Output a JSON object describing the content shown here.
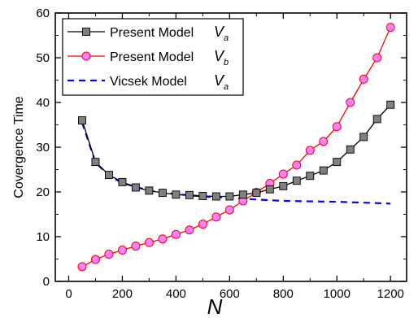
{
  "chart_data": {
    "type": "line",
    "xlabel": "N",
    "ylabel": "Covergence Time",
    "xlim": [
      -50,
      1260
    ],
    "ylim": [
      0,
      60
    ],
    "xticks": [
      0,
      200,
      400,
      600,
      800,
      1000,
      1200
    ],
    "yticks": [
      0,
      10,
      20,
      30,
      40,
      50,
      60
    ],
    "legend_position": "top-left",
    "series": [
      {
        "name": "Present Model",
        "name_symbol": "V",
        "name_subscript": "a",
        "color": "#000000",
        "marker": "square",
        "marker_fill": "#808080",
        "line_style": "solid",
        "x": [
          50,
          100,
          150,
          200,
          250,
          300,
          350,
          400,
          450,
          500,
          550,
          600,
          650,
          700,
          750,
          800,
          850,
          900,
          950,
          1000,
          1050,
          1100,
          1150,
          1200
        ],
        "y": [
          36.0,
          26.7,
          23.8,
          22.2,
          21.0,
          20.3,
          19.8,
          19.4,
          19.3,
          19.1,
          19.0,
          19.0,
          19.4,
          19.8,
          20.6,
          21.3,
          22.5,
          23.6,
          24.8,
          26.7,
          29.5,
          32.3,
          36.3,
          39.5
        ]
      },
      {
        "name": "Present Model",
        "name_symbol": "V",
        "name_subscript": "b",
        "color": "#ff0000",
        "marker": "circle",
        "marker_fill": "#ff80ff",
        "line_style": "solid",
        "x": [
          50,
          100,
          150,
          200,
          250,
          300,
          350,
          400,
          450,
          500,
          550,
          600,
          650,
          700,
          750,
          800,
          850,
          900,
          950,
          1000,
          1050,
          1100,
          1150,
          1200
        ],
        "y": [
          3.3,
          4.9,
          6.1,
          7.0,
          7.9,
          8.7,
          9.5,
          10.5,
          11.5,
          12.8,
          14.4,
          16.0,
          18.0,
          19.9,
          21.9,
          24.0,
          26.0,
          29.3,
          31.3,
          34.6,
          40.0,
          45.2,
          50.0,
          56.8
        ]
      },
      {
        "name": "Vicsek Model",
        "name_symbol": "V",
        "name_subscript": "a",
        "color": "#0000ff",
        "marker": "none",
        "line_style": "dashed",
        "x": [
          50,
          100,
          150,
          200,
          300,
          400,
          500,
          600,
          700,
          800,
          900,
          1000,
          1100,
          1200
        ],
        "y": [
          35.5,
          26.6,
          23.6,
          22.0,
          20.3,
          19.5,
          19.0,
          18.7,
          18.3,
          18.0,
          17.9,
          17.8,
          17.6,
          17.4
        ]
      }
    ]
  }
}
